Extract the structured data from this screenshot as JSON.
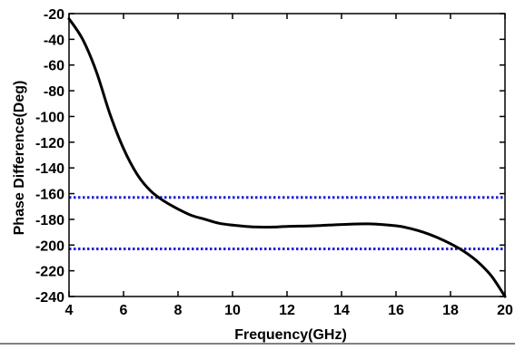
{
  "chart_data": {
    "type": "line",
    "title": "",
    "xlabel": "Frequency(GHz)",
    "ylabel": "Phase Difference(Deg)",
    "xlim": [
      4,
      20
    ],
    "ylim": [
      -240,
      -20
    ],
    "xticks": [
      4,
      6,
      8,
      10,
      12,
      14,
      16,
      18,
      20
    ],
    "yticks": [
      -20,
      -40,
      -60,
      -80,
      -100,
      -120,
      -140,
      -160,
      -180,
      -200,
      -220,
      -240
    ],
    "xtick_labels": [
      "4",
      "6",
      "8",
      "10",
      "12",
      "14",
      "16",
      "18",
      "20"
    ],
    "ytick_labels": [
      "-20",
      "-40",
      "-60",
      "-80",
      "-100",
      "-120",
      "-140",
      "-160",
      "-180",
      "-200",
      "-220",
      "-240"
    ],
    "grid": false,
    "legend": "none",
    "series": [
      {
        "color": "#000000",
        "style": "solid",
        "x": [
          4.0,
          4.5,
          5.0,
          5.5,
          6.0,
          6.5,
          7.0,
          7.5,
          8.0,
          8.5,
          9.0,
          9.5,
          10.0,
          10.5,
          11.0,
          11.5,
          12.0,
          13.0,
          14.0,
          15.0,
          16.0,
          16.5,
          17.0,
          17.5,
          18.0,
          18.5,
          19.0,
          19.5,
          20.0
        ],
        "y": [
          -24,
          -40,
          -65,
          -98,
          -125,
          -145,
          -158,
          -166,
          -172,
          -177,
          -180,
          -183,
          -184.5,
          -185.5,
          -186,
          -186,
          -185.5,
          -185,
          -184,
          -183.5,
          -185,
          -187,
          -190,
          -194,
          -199,
          -205,
          -213,
          -224,
          -240
        ]
      }
    ],
    "reference_lines": [
      {
        "y": -163,
        "color": "#1f1fd8",
        "style": "dotted"
      },
      {
        "y": -203,
        "color": "#1f1fd8",
        "style": "dotted"
      }
    ]
  }
}
